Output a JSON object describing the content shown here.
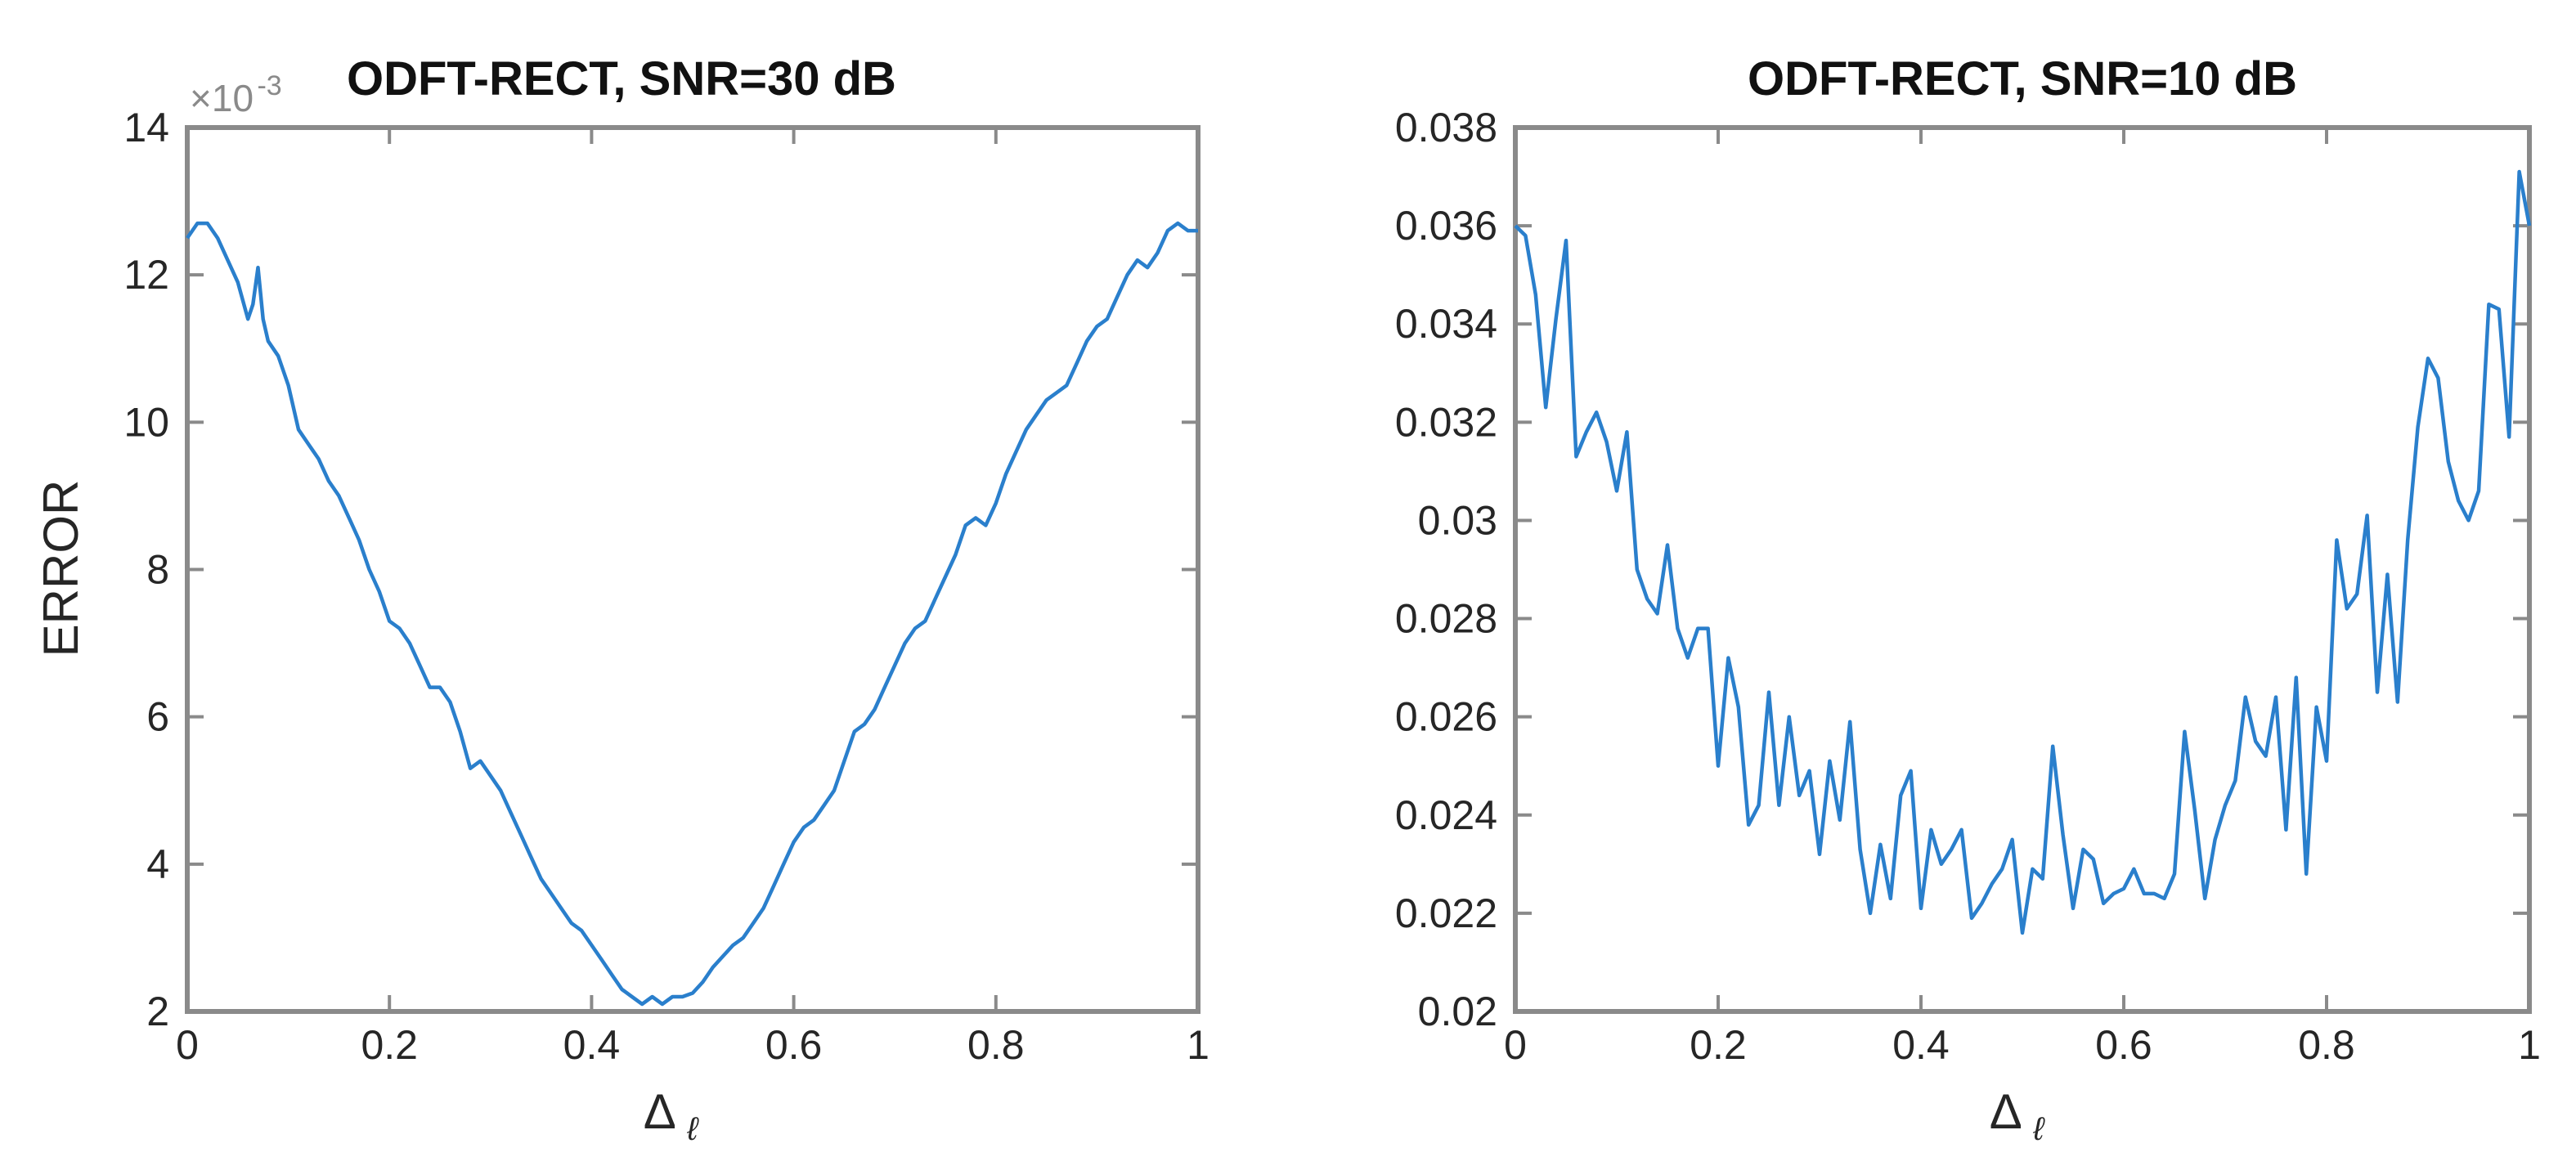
{
  "chart_data": [
    {
      "type": "line",
      "title": "ODFT-RECT, SNR=30 dB",
      "xlabel": "Δ",
      "xlabel_subscript": "ℓ",
      "ylabel": "ERROR",
      "y_multiplier": {
        "base": "×10",
        "exponent": "-3"
      },
      "xlim": [
        0,
        1
      ],
      "ylim": [
        2,
        14
      ],
      "xticks": [
        0,
        0.2,
        0.4,
        0.6,
        0.8,
        1
      ],
      "xtick_labels": [
        "0",
        "0.2",
        "0.4",
        "0.6",
        "0.8",
        "1"
      ],
      "yticks": [
        2,
        4,
        6,
        8,
        10,
        12,
        14
      ],
      "ytick_labels": [
        "2",
        "4",
        "6",
        "8",
        "10",
        "12",
        "14"
      ],
      "grid": false,
      "line_color": "#2a7fcc",
      "series": [
        {
          "x": [
            0.0,
            0.01,
            0.02,
            0.03,
            0.04,
            0.05,
            0.06,
            0.065,
            0.07,
            0.075,
            0.08,
            0.09,
            0.1,
            0.11,
            0.12,
            0.13,
            0.14,
            0.15,
            0.16,
            0.17,
            0.18,
            0.19,
            0.2,
            0.21,
            0.22,
            0.23,
            0.24,
            0.25,
            0.26,
            0.27,
            0.28,
            0.29,
            0.3,
            0.31,
            0.32,
            0.33,
            0.34,
            0.35,
            0.36,
            0.37,
            0.38,
            0.39,
            0.4,
            0.41,
            0.42,
            0.43,
            0.44,
            0.45,
            0.46,
            0.47,
            0.48,
            0.49,
            0.5,
            0.51,
            0.52,
            0.53,
            0.54,
            0.55,
            0.56,
            0.57,
            0.58,
            0.59,
            0.6,
            0.61,
            0.62,
            0.63,
            0.64,
            0.65,
            0.66,
            0.67,
            0.68,
            0.69,
            0.7,
            0.71,
            0.72,
            0.73,
            0.74,
            0.75,
            0.76,
            0.77,
            0.78,
            0.79,
            0.8,
            0.81,
            0.82,
            0.83,
            0.84,
            0.85,
            0.86,
            0.87,
            0.88,
            0.89,
            0.9,
            0.91,
            0.92,
            0.93,
            0.94,
            0.95,
            0.96,
            0.97,
            0.98,
            0.99,
            1.0
          ],
          "y": [
            12.5,
            12.7,
            12.7,
            12.5,
            12.2,
            11.9,
            11.4,
            11.6,
            12.1,
            11.4,
            11.1,
            10.9,
            10.5,
            9.9,
            9.7,
            9.5,
            9.2,
            9.0,
            8.7,
            8.4,
            8.0,
            7.7,
            7.3,
            7.2,
            7.0,
            6.7,
            6.4,
            6.4,
            6.2,
            5.8,
            5.3,
            5.4,
            5.2,
            5.0,
            4.7,
            4.4,
            4.1,
            3.8,
            3.6,
            3.4,
            3.2,
            3.1,
            2.9,
            2.7,
            2.5,
            2.3,
            2.2,
            2.1,
            2.2,
            2.1,
            2.2,
            2.2,
            2.25,
            2.4,
            2.6,
            2.75,
            2.9,
            3.0,
            3.2,
            3.4,
            3.7,
            4.0,
            4.3,
            4.5,
            4.6,
            4.8,
            5.0,
            5.4,
            5.8,
            5.9,
            6.1,
            6.4,
            6.7,
            7.0,
            7.2,
            7.3,
            7.6,
            7.9,
            8.2,
            8.6,
            8.7,
            8.6,
            8.9,
            9.3,
            9.6,
            9.9,
            10.1,
            10.3,
            10.4,
            10.5,
            10.8,
            11.1,
            11.3,
            11.4,
            11.7,
            12.0,
            12.2,
            12.1,
            12.3,
            12.6,
            12.7,
            12.6,
            12.6
          ]
        }
      ]
    },
    {
      "type": "line",
      "title": "ODFT-RECT, SNR=10 dB",
      "xlabel": "Δ",
      "xlabel_subscript": "ℓ",
      "ylabel": "",
      "xlim": [
        0,
        1
      ],
      "ylim": [
        0.02,
        0.038
      ],
      "xticks": [
        0,
        0.2,
        0.4,
        0.6,
        0.8,
        1
      ],
      "xtick_labels": [
        "0",
        "0.2",
        "0.4",
        "0.6",
        "0.8",
        "1"
      ],
      "yticks": [
        0.02,
        0.022,
        0.024,
        0.026,
        0.028,
        0.03,
        0.032,
        0.034,
        0.036,
        0.038
      ],
      "ytick_labels": [
        "0.02",
        "0.022",
        "0.024",
        "0.026",
        "0.028",
        "0.03",
        "0.032",
        "0.034",
        "0.036",
        "0.038"
      ],
      "grid": false,
      "line_color": "#2a7fcc",
      "series": [
        {
          "x": [
            0.0,
            0.01,
            0.02,
            0.03,
            0.04,
            0.05,
            0.06,
            0.07,
            0.08,
            0.09,
            0.1,
            0.11,
            0.12,
            0.13,
            0.14,
            0.15,
            0.16,
            0.17,
            0.18,
            0.19,
            0.2,
            0.21,
            0.22,
            0.23,
            0.24,
            0.25,
            0.26,
            0.27,
            0.28,
            0.29,
            0.3,
            0.31,
            0.32,
            0.33,
            0.34,
            0.35,
            0.36,
            0.37,
            0.38,
            0.39,
            0.4,
            0.41,
            0.42,
            0.43,
            0.44,
            0.45,
            0.46,
            0.47,
            0.48,
            0.49,
            0.5,
            0.51,
            0.52,
            0.53,
            0.54,
            0.55,
            0.56,
            0.57,
            0.58,
            0.59,
            0.6,
            0.61,
            0.62,
            0.63,
            0.64,
            0.65,
            0.66,
            0.67,
            0.68,
            0.69,
            0.7,
            0.71,
            0.72,
            0.73,
            0.74,
            0.75,
            0.76,
            0.77,
            0.78,
            0.79,
            0.8,
            0.81,
            0.82,
            0.83,
            0.84,
            0.85,
            0.86,
            0.87,
            0.88,
            0.89,
            0.9,
            0.91,
            0.92,
            0.93,
            0.94,
            0.95,
            0.96,
            0.97,
            0.98,
            0.99,
            1.0
          ],
          "y": [
            0.036,
            0.0358,
            0.0346,
            0.0323,
            0.0341,
            0.0357,
            0.0313,
            0.0318,
            0.0322,
            0.0316,
            0.0306,
            0.0318,
            0.029,
            0.0284,
            0.0281,
            0.0295,
            0.0278,
            0.0272,
            0.0278,
            0.0278,
            0.025,
            0.0272,
            0.0262,
            0.0238,
            0.0242,
            0.0265,
            0.0242,
            0.026,
            0.0244,
            0.0249,
            0.0232,
            0.0251,
            0.0239,
            0.0259,
            0.0233,
            0.022,
            0.0234,
            0.0223,
            0.0244,
            0.0249,
            0.0221,
            0.0237,
            0.023,
            0.0233,
            0.0237,
            0.0219,
            0.0222,
            0.0226,
            0.0229,
            0.0235,
            0.0216,
            0.0229,
            0.0227,
            0.0254,
            0.0236,
            0.0221,
            0.0233,
            0.0231,
            0.0222,
            0.0224,
            0.0225,
            0.0229,
            0.0224,
            0.0224,
            0.0223,
            0.0228,
            0.0257,
            0.0241,
            0.0223,
            0.0235,
            0.0242,
            0.0247,
            0.0264,
            0.0255,
            0.0252,
            0.0264,
            0.0237,
            0.0268,
            0.0228,
            0.0262,
            0.0251,
            0.0296,
            0.0282,
            0.0285,
            0.0301,
            0.0265,
            0.0289,
            0.0263,
            0.0296,
            0.0319,
            0.0333,
            0.0329,
            0.0312,
            0.0304,
            0.03,
            0.0306,
            0.0344,
            0.0343,
            0.0317,
            0.0371,
            0.036
          ]
        }
      ]
    }
  ]
}
